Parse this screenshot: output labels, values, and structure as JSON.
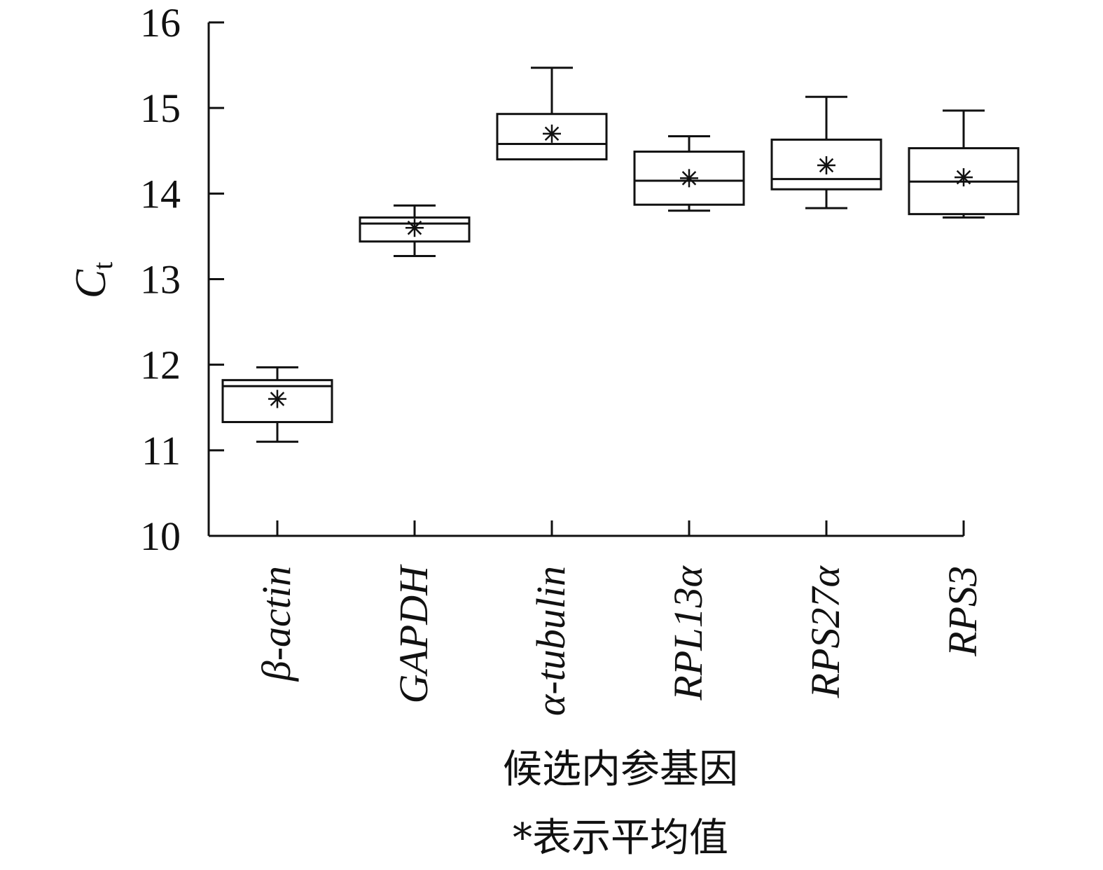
{
  "chart_data": {
    "type": "box",
    "categories": [
      "β-actin",
      "GAPDH",
      "α-tubulin",
      "RPL13α",
      "RPS27α",
      "RPS3"
    ],
    "boxes": [
      {
        "category": "β-actin",
        "min": 11.1,
        "q1": 11.33,
        "median": 11.75,
        "q3": 11.82,
        "max": 11.97,
        "mean": 11.6
      },
      {
        "category": "GAPDH",
        "min": 13.27,
        "q1": 13.44,
        "median": 13.65,
        "q3": 13.72,
        "max": 13.86,
        "mean": 13.6
      },
      {
        "category": "α-tubulin",
        "min": 14.4,
        "q1": 14.4,
        "median": 14.58,
        "q3": 14.93,
        "max": 15.47,
        "mean": 14.7
      },
      {
        "category": "RPL13α",
        "min": 13.8,
        "q1": 13.87,
        "median": 14.15,
        "q3": 14.49,
        "max": 14.67,
        "mean": 14.18
      },
      {
        "category": "RPS27α",
        "min": 13.83,
        "q1": 14.05,
        "median": 14.17,
        "q3": 14.63,
        "max": 15.13,
        "mean": 14.33
      },
      {
        "category": "RPS3",
        "min": 13.72,
        "q1": 13.76,
        "median": 14.14,
        "q3": 14.53,
        "max": 14.97,
        "mean": 14.19
      }
    ],
    "yticks": [
      "10",
      "11",
      "12",
      "13",
      "14",
      "15",
      "16"
    ],
    "ylim": [
      10,
      16
    ],
    "ylabel_main": "C",
    "ylabel_sub": "t",
    "xlabel": "候选内参基因",
    "note": "*表示平均值",
    "mean_marker": "asterisk",
    "grid": false,
    "colors": {
      "stroke": "#111111",
      "box_fill": "#ffffff"
    }
  }
}
